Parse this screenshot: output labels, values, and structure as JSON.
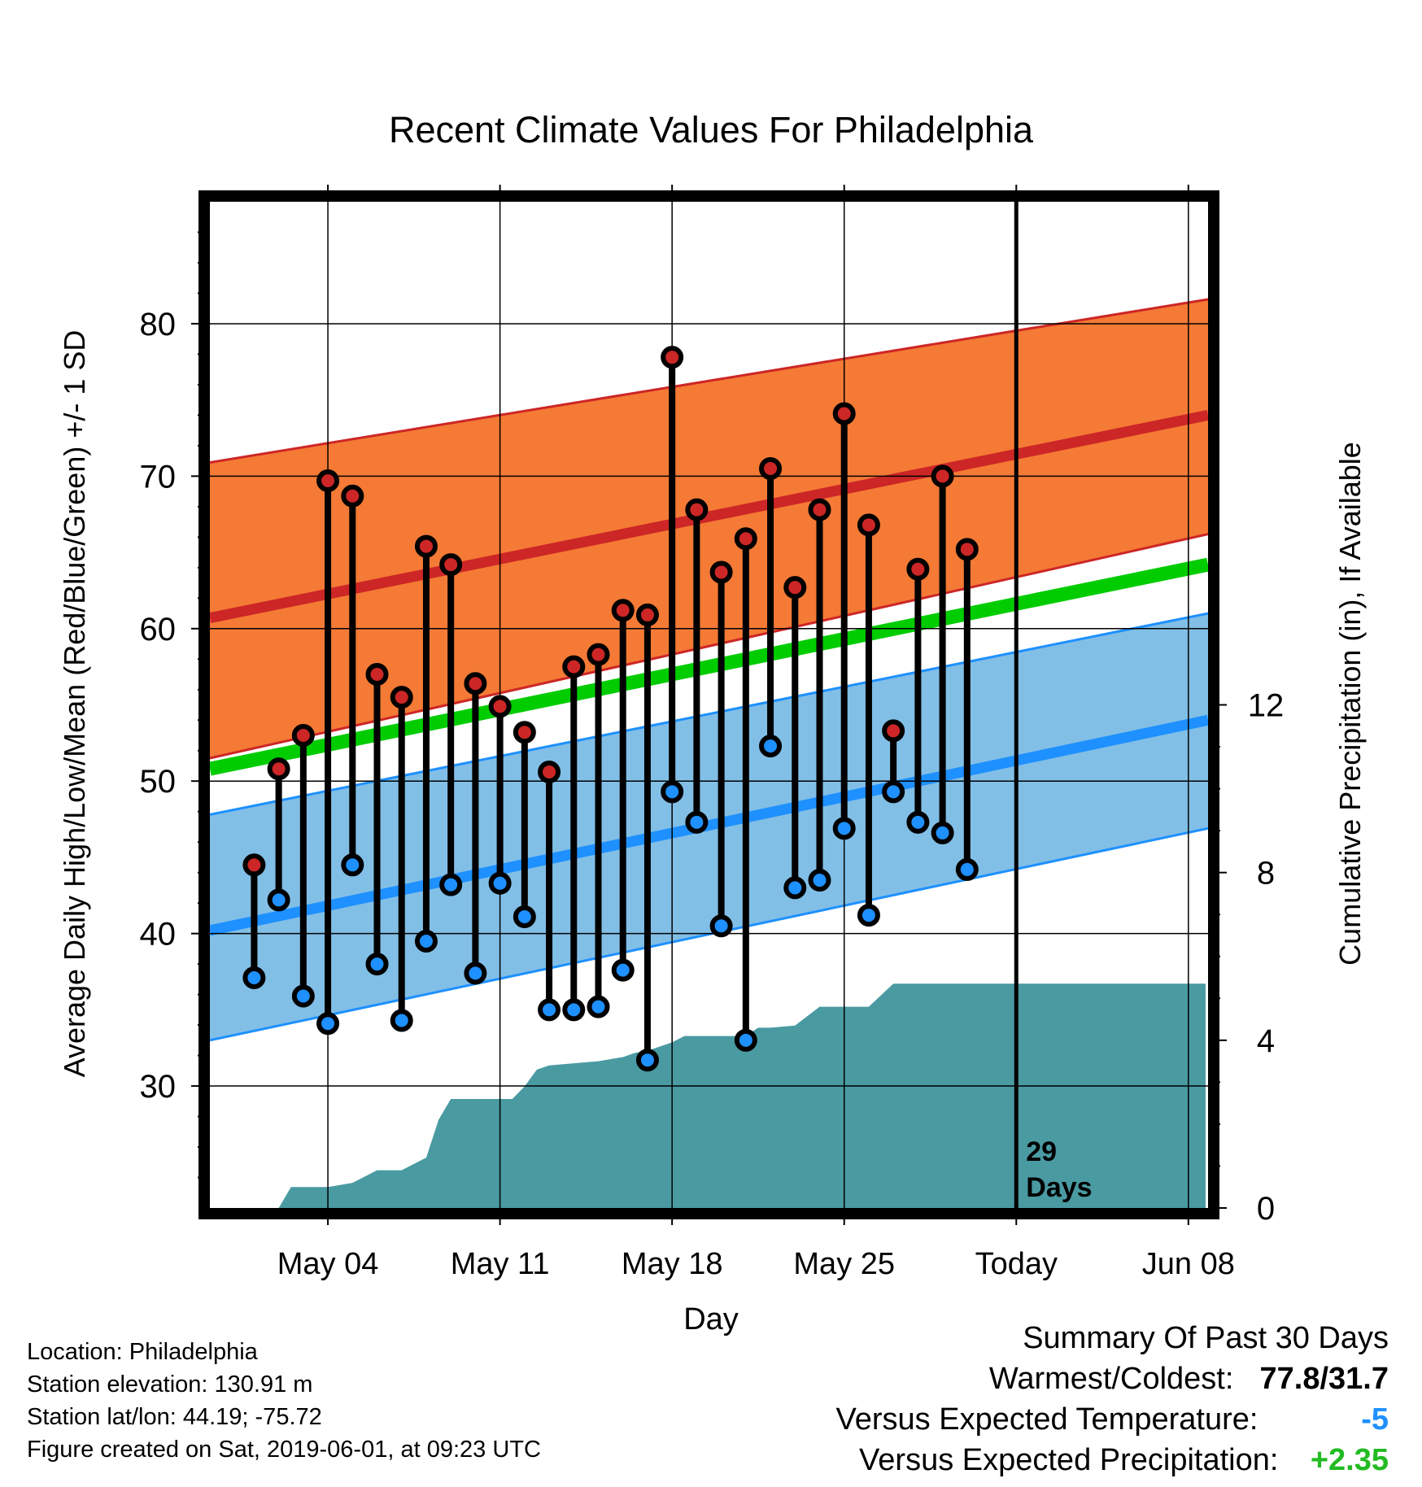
{
  "chart_data": {
    "type": "line",
    "title": "Recent Climate Values For Philadelphia",
    "xlabel": "Day",
    "ylabel": "Average Daily High/Low/Mean (Red/Blue/Green) +/- 1 SD",
    "y2label": "Cumulative Precipitation (in), If Available",
    "ylim": [
      22,
      88
    ],
    "y2lim": [
      0,
      24
    ],
    "yticks": [
      30,
      40,
      50,
      60,
      70,
      80
    ],
    "y2ticks": [
      0,
      4,
      8,
      12
    ],
    "x_range_days": [
      -1.8,
      38.8
    ],
    "x_tick_labels": [
      {
        "day": 3,
        "label": "May 04"
      },
      {
        "day": 10,
        "label": "May 11"
      },
      {
        "day": 17,
        "label": "May 18"
      },
      {
        "day": 24,
        "label": "May 25"
      },
      {
        "day": 31,
        "label": "Today"
      },
      {
        "day": 38,
        "label": "Jun 08"
      }
    ],
    "today_day": 31,
    "today_annotation": [
      "29",
      "Days"
    ],
    "grid": true,
    "normals": {
      "high_mean": [
        60.7,
        74.0
      ],
      "high_upper": [
        70.9,
        81.6
      ],
      "high_lower": [
        51.5,
        66.2
      ],
      "mean": [
        50.8,
        64.2
      ],
      "low_mean": [
        40.2,
        54.0
      ],
      "low_upper": [
        47.8,
        61.0
      ],
      "low_lower": [
        33.0,
        46.9
      ]
    },
    "series": [
      {
        "name": "High",
        "color": "#cd2626",
        "x": [
          0,
          1,
          2,
          3,
          4,
          5,
          6,
          7,
          8,
          9,
          10,
          11,
          12,
          13,
          14,
          15,
          16,
          17,
          18,
          19,
          20,
          21,
          22,
          23,
          24,
          25,
          26,
          27,
          28,
          29
        ],
        "values": [
          44.5,
          50.8,
          53.0,
          69.7,
          68.7,
          57.0,
          55.5,
          65.4,
          64.2,
          56.4,
          54.9,
          53.2,
          50.6,
          57.5,
          58.3,
          61.2,
          60.9,
          77.8,
          67.8,
          63.7,
          65.9,
          70.5,
          62.7,
          67.8,
          74.1,
          66.8,
          53.3,
          63.9,
          70.0,
          65.2
        ]
      },
      {
        "name": "Low",
        "color": "#1e90ff",
        "x": [
          0,
          1,
          2,
          3,
          4,
          5,
          6,
          7,
          8,
          9,
          10,
          11,
          12,
          13,
          14,
          15,
          16,
          17,
          18,
          19,
          20,
          21,
          22,
          23,
          24,
          25,
          26,
          27,
          28,
          29
        ],
        "values": [
          37.1,
          42.2,
          35.9,
          34.1,
          44.5,
          38.0,
          34.3,
          39.5,
          43.2,
          37.4,
          43.3,
          41.1,
          35.0,
          35.0,
          35.2,
          37.6,
          31.7,
          49.3,
          47.3,
          40.5,
          33.0,
          52.3,
          43.0,
          43.5,
          46.9,
          41.2,
          49.3,
          47.3,
          46.6,
          44.2
        ]
      }
    ],
    "precipitation": {
      "name": "Cumulative Precipitation",
      "color": "#4a9aa2",
      "x": [
        0,
        0.5,
        1,
        1.5,
        3,
        4,
        5,
        6,
        7,
        7.5,
        8,
        9,
        10,
        10.5,
        11,
        11.5,
        12,
        13,
        14,
        15,
        15.5,
        16,
        17,
        17.5,
        18,
        19,
        20,
        20.5,
        21,
        22,
        23,
        24,
        25,
        26,
        27,
        28,
        29,
        30,
        31,
        38.7
      ],
      "values": [
        0,
        0,
        0,
        0.5,
        0.5,
        0.6,
        0.9,
        0.9,
        1.2,
        2.1,
        2.6,
        2.6,
        2.6,
        2.6,
        2.9,
        3.3,
        3.4,
        3.45,
        3.5,
        3.6,
        3.7,
        3.75,
        3.95,
        4.1,
        4.1,
        4.1,
        4.1,
        4.3,
        4.3,
        4.35,
        4.8,
        4.8,
        4.8,
        5.35,
        5.35,
        5.35,
        5.35,
        5.35,
        5.35,
        5.35
      ]
    }
  },
  "info": {
    "location": "Location: Philadelphia",
    "elevation": "Station elevation: 130.91 m",
    "latlon": "Station lat/lon: 44.19; -75.72",
    "created": "Figure created on Sat, 2019-06-01, at 09:23 UTC"
  },
  "summary": {
    "heading": "Summary Of Past 30 Days",
    "warm_cold_label": "Warmest/Coldest:",
    "warm_cold_value": "77.8/31.7",
    "temp_label": "Versus Expected Temperature:",
    "temp_value": "-5",
    "temp_color": "#1e90ff",
    "precip_label": "Versus Expected Precipitation:",
    "precip_value": "+2.35",
    "precip_color": "#22bb22"
  },
  "colors": {
    "high_band": "#f47a35",
    "high_line": "#cd2626",
    "mean_line": "#00cc00",
    "low_band": "#82bfe6",
    "low_line": "#1e90ff"
  }
}
